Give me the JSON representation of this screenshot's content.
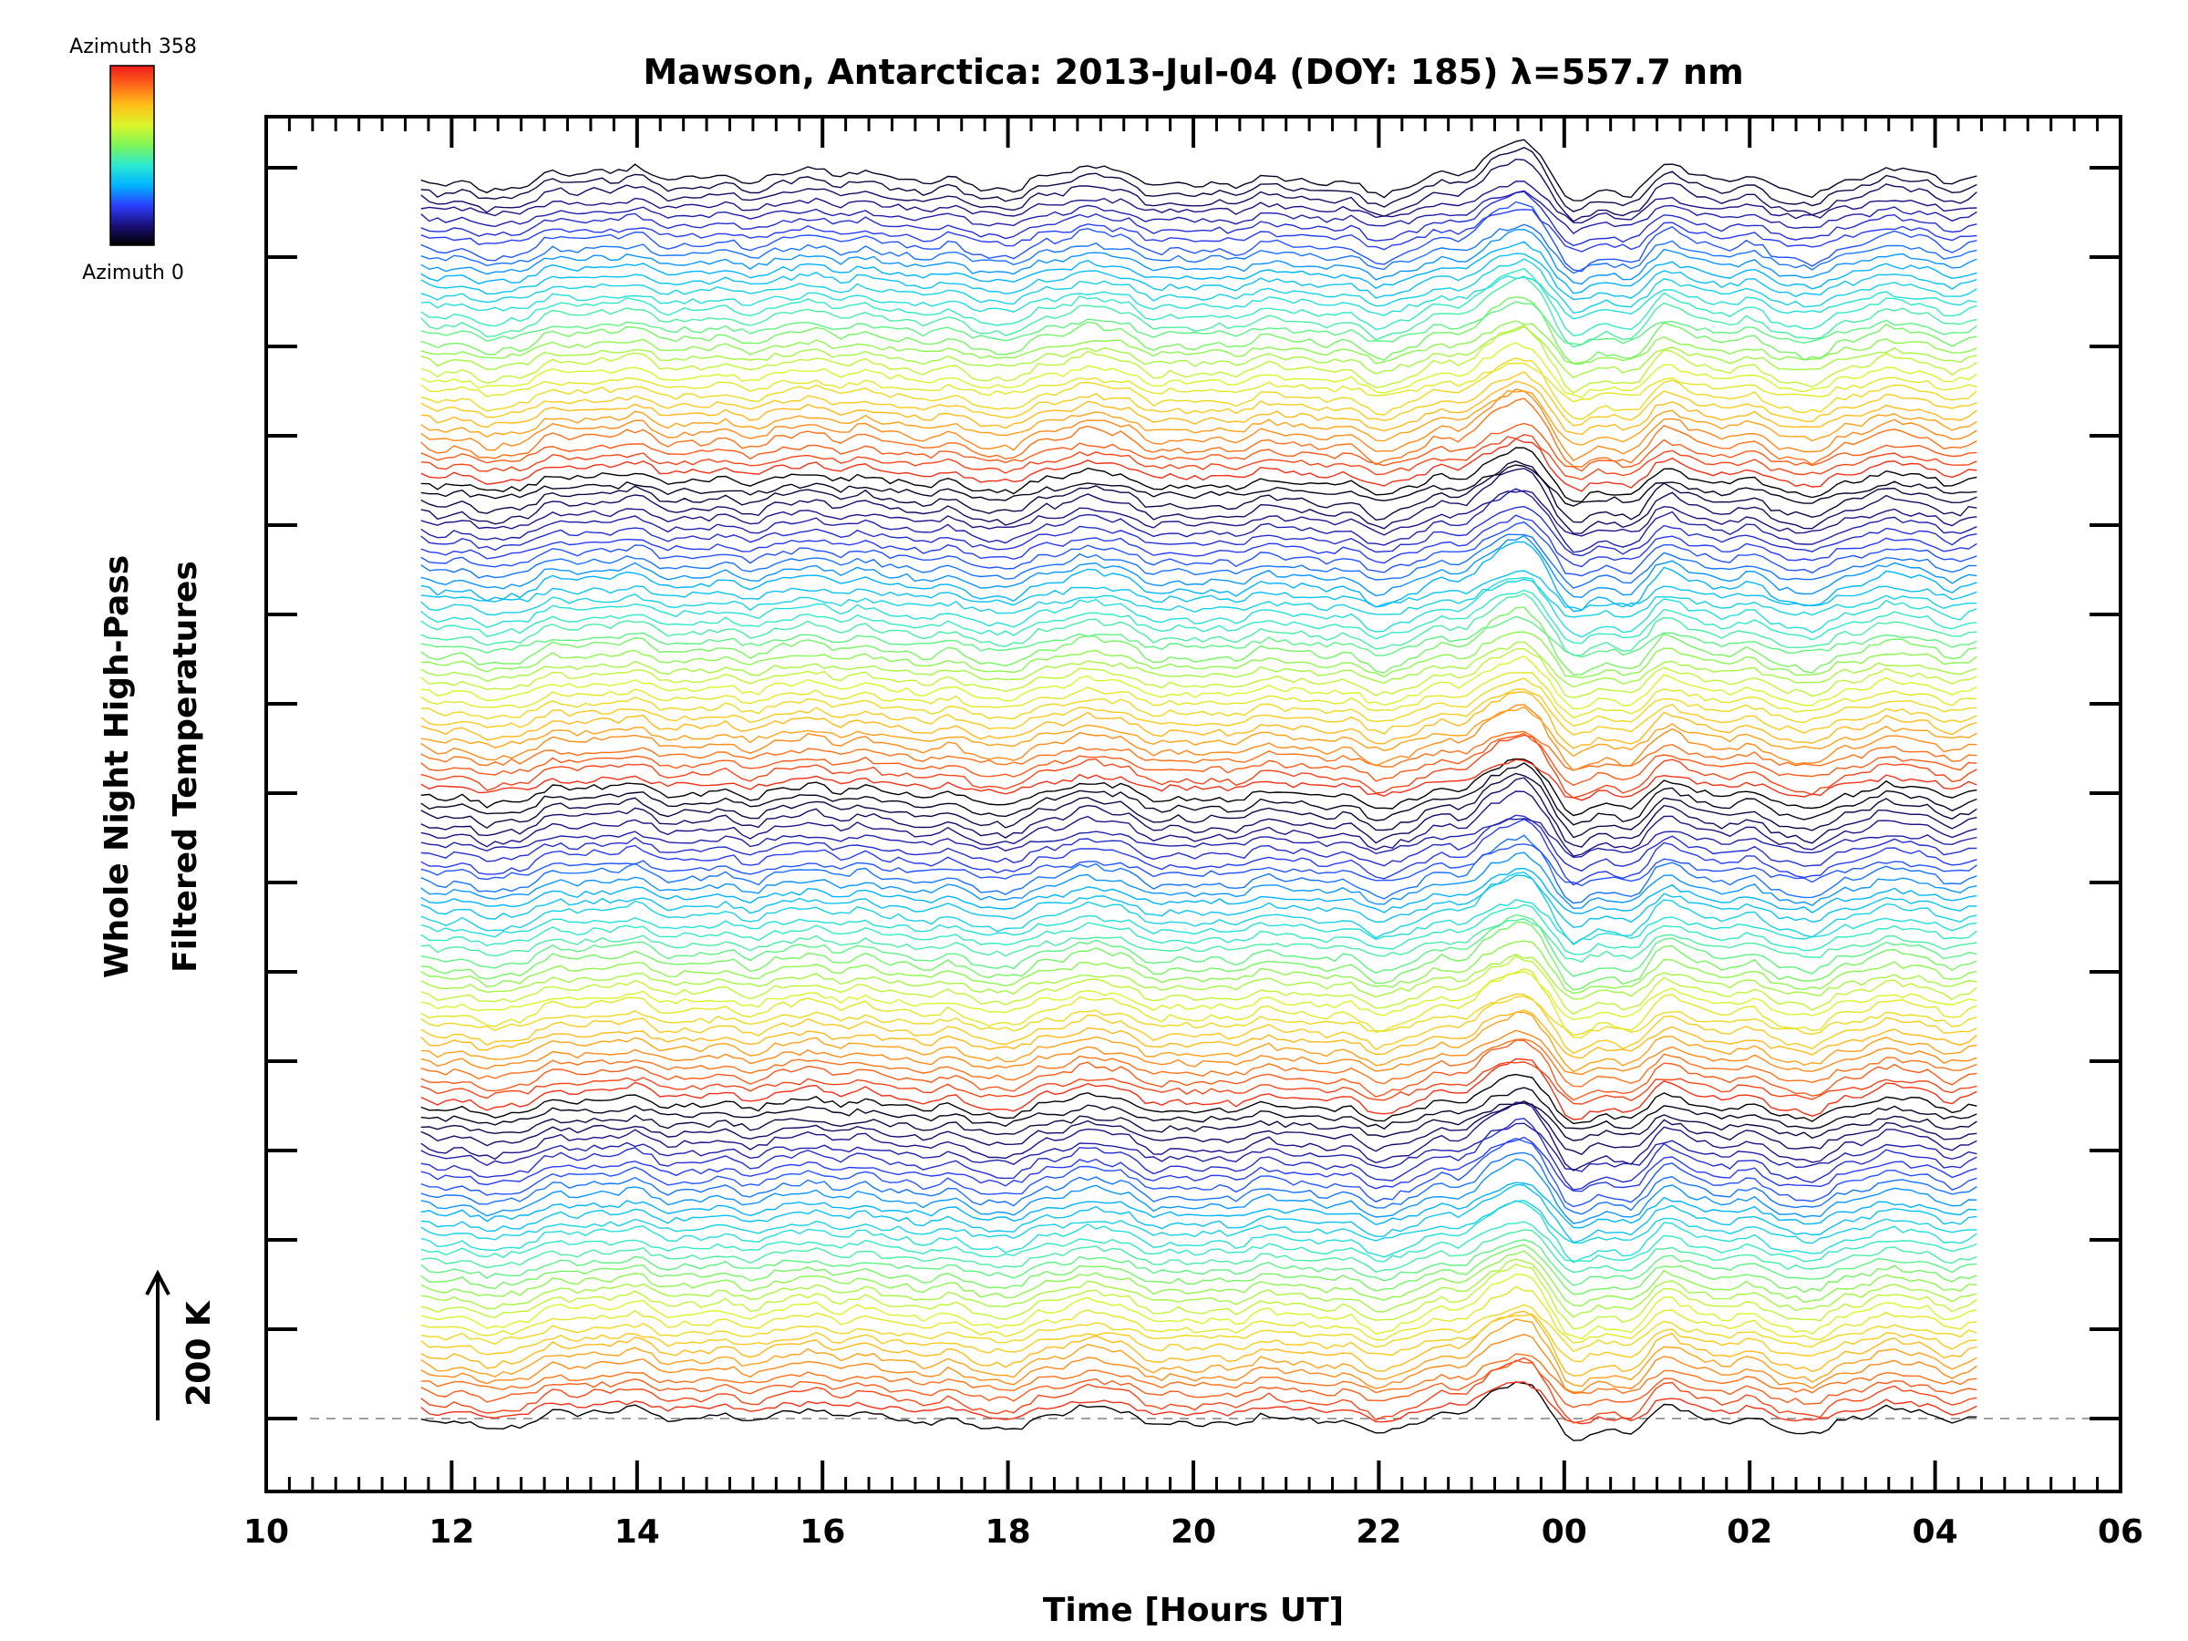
{
  "chart_data": {
    "type": "line",
    "title": "Mawson, Antarctica: 2013-Jul-04 (DOY: 185) λ=557.7 nm",
    "xlabel": "Time [Hours UT]",
    "ylabel_line1": "Whole Night High-Pass",
    "ylabel_line2": "Filtered Temperatures",
    "scale_label": "200 K",
    "x_ticks": [
      "10",
      "12",
      "14",
      "16",
      "18",
      "20",
      "22",
      "00",
      "02",
      "04",
      "06"
    ],
    "x_range_hours": [
      10,
      30
    ],
    "data_start_hour": 11.67,
    "data_end_hour": 28.45,
    "colorbar": {
      "top_label": "Azimuth 358",
      "bottom_label": "Azimuth 0",
      "range": [
        0,
        358
      ]
    },
    "stacked_traces": 132,
    "grid": false,
    "baseline_dashed": true
  },
  "colors": {
    "axis": "#000000",
    "baseline": "#a0a0a0",
    "colormap": [
      "#000000",
      "#1b0f7a",
      "#2c3fff",
      "#00b4ff",
      "#2be9d0",
      "#7df55a",
      "#d9f52a",
      "#ffc21a",
      "#ff6a1a",
      "#ee1a1a"
    ]
  }
}
